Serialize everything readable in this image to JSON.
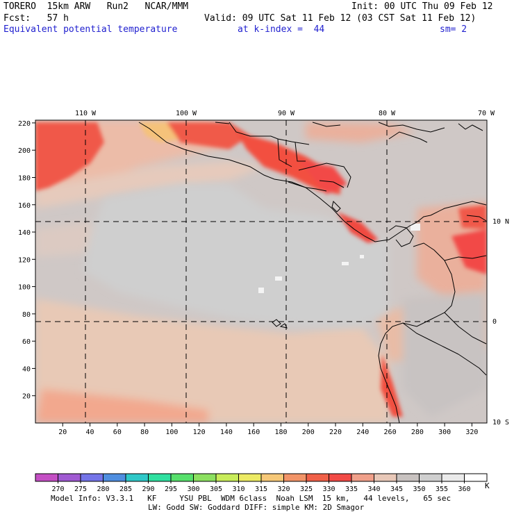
{
  "header": {
    "model": "TORERO  15km ARW   Run2   NCAR/MMM",
    "init": "Init: 00 UTC Thu 09 Feb 12",
    "fcst": "Fcst:   57 h",
    "valid": "Valid: 09 UTC Sat 11 Feb 12 (03 CST Sat 11 Feb 12)",
    "field": "Equivalent potential temperature",
    "level": "at k-index =  44",
    "smooth": "sm= 2"
  },
  "map": {
    "lon_labels": [
      "110 W",
      "100 W",
      "90 W",
      "80 W",
      "70 W"
    ],
    "lat_labels": [
      "10 N",
      "0",
      "10 S"
    ],
    "y_ticks": [
      "20",
      "40",
      "60",
      "80",
      "100",
      "120",
      "140",
      "160",
      "180",
      "200",
      "220"
    ],
    "x_ticks": [
      "20",
      "40",
      "60",
      "80",
      "100",
      "120",
      "140",
      "160",
      "180",
      "200",
      "220",
      "240",
      "260",
      "280",
      "300",
      "320"
    ]
  },
  "colorbar": {
    "values": [
      "270",
      "275",
      "280",
      "285",
      "290",
      "295",
      "300",
      "305",
      "310",
      "315",
      "320",
      "325",
      "330",
      "335",
      "340",
      "345",
      "350",
      "355",
      "360"
    ],
    "unit": "K",
    "colors": [
      "#c44fc4",
      "#a05ad2",
      "#7474e8",
      "#4f8ee0",
      "#2fc8c8",
      "#2fe0a0",
      "#57e06c",
      "#8ce060",
      "#c8ec5a",
      "#ecea64",
      "#f6c878",
      "#f29468",
      "#f06048",
      "#f24a46",
      "#f0a08a",
      "#e8c8b8",
      "#c8c2c0",
      "#cfcfcf",
      "#eaeaea",
      "#ffffff"
    ]
  },
  "footer": {
    "line1": "Model Info: V3.3.1   KF     YSU PBL  WDM 6class  Noah LSM  15 km,   44 levels,   65 sec",
    "line2": "LW: Godd SW: Goddard DIFF: simple KM: 2D Smagor"
  }
}
